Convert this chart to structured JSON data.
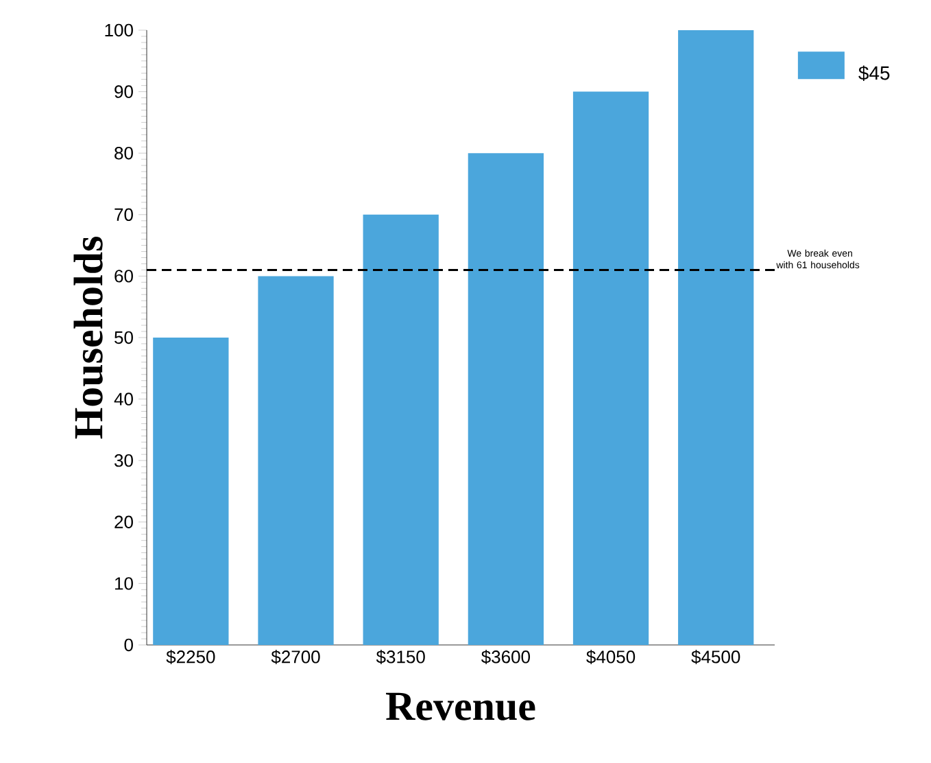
{
  "chart_data": {
    "type": "bar",
    "xlabel": "Revenue",
    "ylabel": "Households",
    "categories": [
      "$2250",
      "$2700",
      "$3150",
      "$3600",
      "$4050",
      "$4500"
    ],
    "series": [
      {
        "name": "$45",
        "color": "#4ba6dc",
        "values": [
          50,
          60,
          70,
          80,
          90,
          100
        ]
      }
    ],
    "ylim": [
      0,
      100
    ],
    "yticks": [
      0,
      10,
      20,
      30,
      40,
      50,
      60,
      70,
      80,
      90,
      100
    ],
    "ref_lines": [
      {
        "axis": "y",
        "value": 61,
        "label": "We break even with 61 households",
        "line_style": "dashed",
        "color": "#000000"
      }
    ],
    "legend": "top right",
    "grid": false
  }
}
